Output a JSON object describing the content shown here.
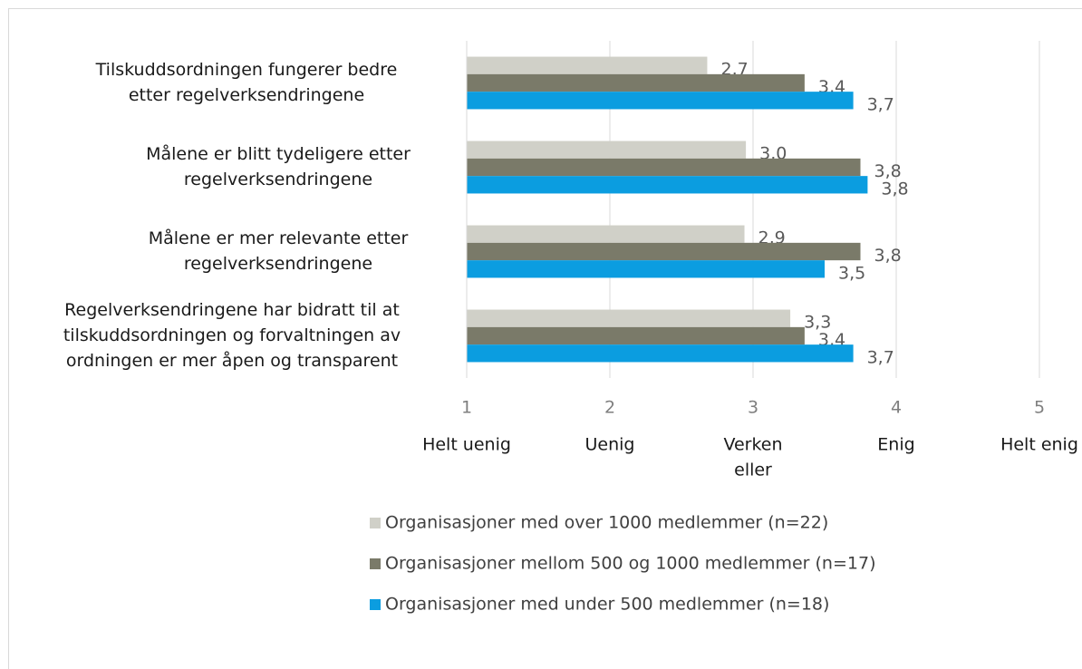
{
  "chart_data": {
    "type": "hbar",
    "categories": [
      [
        "Tilskuddsordningen fungerer bedre",
        "etter regelverksendringene"
      ],
      [
        "Målene er blitt tydeligere etter",
        "regelverksendringene"
      ],
      [
        "Målene er mer relevante etter",
        "regelverksendringene"
      ],
      [
        "Regelverksendringene har bidratt til at",
        "tilskuddsordningen og forvaltningen av",
        "ordningen er mer åpen og transparent"
      ]
    ],
    "series": [
      {
        "name": "Organisasjoner med over 1000 medlemmer (n=22)",
        "color": "#d0d0c8",
        "values": [
          2.68,
          2.95,
          2.94,
          3.26
        ],
        "value_labels": [
          "2,7",
          "3,0",
          "2,9",
          "3,3"
        ]
      },
      {
        "name": "Organisasjoner mellom 500 og 1000 medlemmer (n=17)",
        "color": "#7a7a69",
        "values": [
          3.36,
          3.75,
          3.75,
          3.36
        ],
        "value_labels": [
          "3,4",
          "3,8",
          "3,8",
          "3,4"
        ]
      },
      {
        "name": "Organisasjoner med under 500 medlemmer (n=18)",
        "color": "#0b9de0",
        "values": [
          3.7,
          3.8,
          3.5,
          3.7
        ],
        "value_labels": [
          "3,7",
          "3,8",
          "3,5",
          "3,7"
        ]
      }
    ],
    "xlim": [
      1,
      5
    ],
    "xticks": [
      1,
      2,
      3,
      4,
      5
    ],
    "scale_labels": [
      [
        "Helt uenig"
      ],
      [
        "Uenig"
      ],
      [
        "Verken",
        "eller"
      ],
      [
        "Enig"
      ],
      [
        "Helt enig"
      ]
    ],
    "grid": true,
    "legend": "bottom"
  }
}
